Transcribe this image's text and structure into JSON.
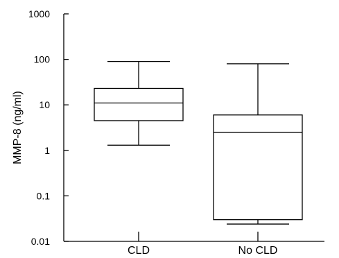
{
  "chart_data": {
    "type": "box",
    "ylabel": "MMP-8 (ng/ml)",
    "xlabel": "",
    "yscale": "log",
    "ylim": [
      0.01,
      1000
    ],
    "ytick_values": [
      1000,
      100,
      10,
      1,
      0.1,
      0.01
    ],
    "ytick_labels": [
      "1000",
      "100",
      "10",
      "1",
      "0.1",
      "0.01"
    ],
    "categories": [
      "CLD",
      "No CLD"
    ],
    "boxes": [
      {
        "category": "CLD",
        "whisker_low": 1.3,
        "q1": 4.5,
        "median": 11,
        "q3": 23,
        "whisker_high": 90
      },
      {
        "category": "No CLD",
        "whisker_low": 0.024,
        "q1": 0.03,
        "median": 2.5,
        "q3": 6,
        "whisker_high": 80
      }
    ],
    "grid": false,
    "legend": "none"
  }
}
